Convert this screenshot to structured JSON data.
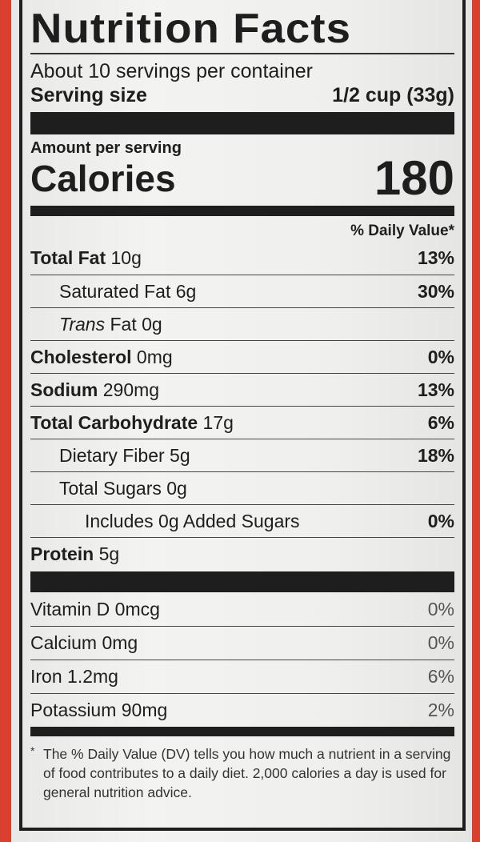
{
  "title": "Nutrition Facts",
  "servings_per_container": "About 10 servings per container",
  "serving_size": {
    "label": "Serving size",
    "value": "1/2 cup (33g)"
  },
  "amount_per_serving": "Amount per serving",
  "calories": {
    "label": "Calories",
    "value": "180"
  },
  "daily_value_header": "% Daily Value*",
  "nutrients": [
    {
      "name": "Total Fat",
      "amount": "10g",
      "dv": "13%",
      "bold": true,
      "indent": 0
    },
    {
      "name": "Saturated Fat",
      "amount": "6g",
      "dv": "30%",
      "bold": false,
      "indent": 1
    },
    {
      "name": "Trans",
      "amount": "Fat 0g",
      "dv": "",
      "bold": false,
      "indent": 1
    },
    {
      "name": "Cholesterol",
      "amount": "0mg",
      "dv": "0%",
      "bold": true,
      "indent": 0
    },
    {
      "name": "Sodium",
      "amount": "290mg",
      "dv": "13%",
      "bold": true,
      "indent": 0
    },
    {
      "name": "Total Carbohydrate",
      "amount": "17g",
      "dv": "6%",
      "bold": true,
      "indent": 0
    },
    {
      "name": "Dietary Fiber",
      "amount": "5g",
      "dv": "18%",
      "bold": false,
      "indent": 1
    },
    {
      "name": "Total Sugars",
      "amount": "0g",
      "dv": "",
      "bold": false,
      "indent": 1
    },
    {
      "name": "Includes 0g Added Sugars",
      "amount": "",
      "dv": "0%",
      "bold": false,
      "indent": 2
    },
    {
      "name": "Protein",
      "amount": "5g",
      "dv": "",
      "bold": true,
      "indent": 0
    }
  ],
  "vitamins": [
    {
      "name": "Vitamin D 0mcg",
      "dv": "0%"
    },
    {
      "name": "Calcium 0mg",
      "dv": "0%"
    },
    {
      "name": "Iron 1.2mg",
      "dv": "6%"
    },
    {
      "name": "Potassium 90mg",
      "dv": "2%"
    }
  ],
  "footnote": {
    "asterisk": "*",
    "text": "The % Daily Value (DV) tells you how much a nutrient in a serving of food contributes to a daily diet. 2,000 calories a day is used for general nutrition advice."
  },
  "colors": {
    "package_red": "#d9412e",
    "label_bg": "#efefed",
    "ink": "#1e1e1e"
  }
}
